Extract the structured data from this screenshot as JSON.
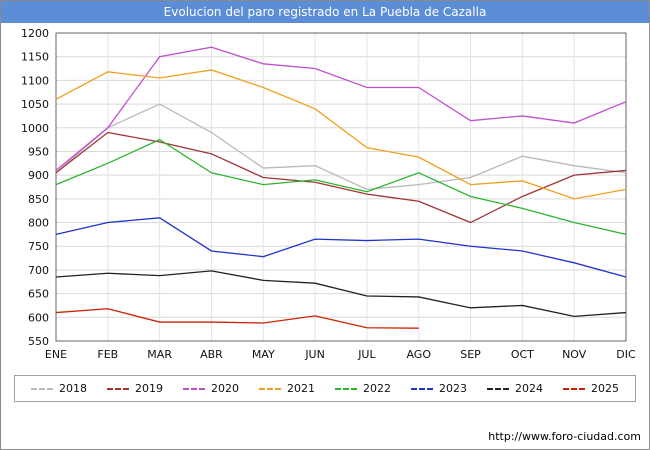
{
  "title": "Evolucion del paro registrado en La Puebla de Cazalla",
  "footer": {
    "url": "http://www.foro-ciudad.com"
  },
  "chart_data": {
    "type": "line",
    "title": "Evolucion del paro registrado en La Puebla de Cazalla",
    "xlabel": "",
    "ylabel": "",
    "ylim": [
      550,
      1200
    ],
    "ytick_step": 50,
    "grid": true,
    "legend_position": "bottom",
    "categories": [
      "ENE",
      "FEB",
      "MAR",
      "ABR",
      "MAY",
      "JUN",
      "JUL",
      "AGO",
      "SEP",
      "OCT",
      "NOV",
      "DIC"
    ],
    "series": [
      {
        "name": "2018",
        "color": "#b9b9b9",
        "values": [
          905,
          1000,
          1050,
          990,
          915,
          920,
          870,
          880,
          895,
          940,
          920,
          905
        ]
      },
      {
        "name": "2019",
        "color": "#a03434",
        "values": [
          905,
          990,
          970,
          945,
          895,
          885,
          860,
          845,
          800,
          855,
          900,
          910
        ]
      },
      {
        "name": "2020",
        "color": "#c050d0",
        "values": [
          910,
          1000,
          1150,
          1170,
          1135,
          1125,
          1085,
          1085,
          1015,
          1025,
          1010,
          1055
        ]
      },
      {
        "name": "2021",
        "color": "#f0a020",
        "values": [
          1060,
          1118,
          1105,
          1122,
          1085,
          1040,
          958,
          938,
          880,
          888,
          850,
          870
        ]
      },
      {
        "name": "2022",
        "color": "#2db52d",
        "values": [
          880,
          925,
          975,
          905,
          880,
          890,
          865,
          905,
          855,
          830,
          800,
          775
        ]
      },
      {
        "name": "2023",
        "color": "#2233cc",
        "values": [
          775,
          800,
          810,
          740,
          728,
          765,
          762,
          765,
          750,
          740,
          715,
          685
        ]
      },
      {
        "name": "2024",
        "color": "#222222",
        "values": [
          685,
          693,
          688,
          698,
          678,
          672,
          645,
          643,
          620,
          625,
          602,
          610
        ]
      },
      {
        "name": "2025",
        "color": "#cc2200",
        "values": [
          610,
          618,
          590,
          590,
          588,
          603,
          578,
          577,
          null,
          null,
          null,
          null
        ]
      }
    ]
  }
}
